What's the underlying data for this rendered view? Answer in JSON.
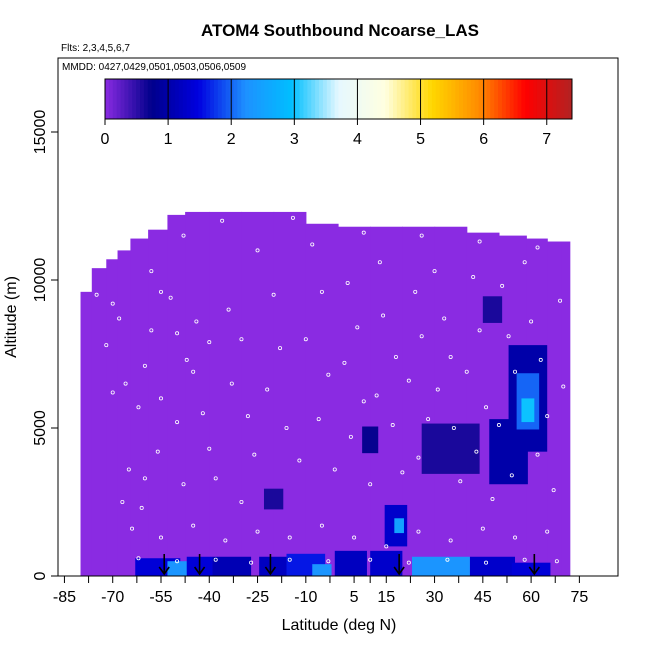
{
  "chart_data": {
    "type": "heatmap",
    "title": "ATOM4 Southbound Ncoarse_LAS",
    "subtitle_flights": "Flts: 2,3,4,5,6,7",
    "subtitle_dates": "MMDD: 0427,0429,0501,0503,0506,0509",
    "xlabel": "Latitude (deg N)",
    "ylabel": "Altitude (m)",
    "xlim": [
      -87,
      87
    ],
    "ylim": [
      0,
      17500
    ],
    "x_ticks": [
      -85,
      -70,
      -55,
      -40,
      -25,
      -10,
      5,
      15,
      30,
      45,
      60,
      75
    ],
    "x_tick_labels": [
      "-85",
      "-70",
      "-55",
      "-40",
      "-25",
      "-10",
      "5",
      "15",
      "30",
      "45",
      "60",
      "75"
    ],
    "y_ticks": [
      0,
      5000,
      10000,
      15000
    ],
    "y_tick_labels": [
      "0",
      "5000",
      "10000",
      "15000"
    ],
    "colorbar": {
      "min": 0,
      "max": 7.4,
      "ticks": [
        0,
        1,
        2,
        3,
        4,
        5,
        6,
        7
      ],
      "tick_labels": [
        "0",
        "1",
        "2",
        "3",
        "4",
        "5",
        "6",
        "7"
      ],
      "colors": [
        "#8a2be2",
        "#00008b",
        "#0000e0",
        "#1e90ff",
        "#00bfff",
        "#e6f8ff",
        "#ffffe0",
        "#ffd700",
        "#ff8c00",
        "#ff0000",
        "#b22222"
      ]
    },
    "background_value": 0,
    "ceiling": [
      {
        "x": -79,
        "alt": 9600
      },
      {
        "x": -74,
        "alt": 10400
      },
      {
        "x": -70,
        "alt": 10700
      },
      {
        "x": -67,
        "alt": 11000
      },
      {
        "x": -62,
        "alt": 11400
      },
      {
        "x": -56,
        "alt": 11700
      },
      {
        "x": -50,
        "alt": 12200
      },
      {
        "x": -45,
        "alt": 12300
      },
      {
        "x": -35,
        "alt": 12300
      },
      {
        "x": -25,
        "alt": 12300
      },
      {
        "x": -15,
        "alt": 12300
      },
      {
        "x": -5,
        "alt": 11900
      },
      {
        "x": 5,
        "alt": 11800
      },
      {
        "x": 15,
        "alt": 11800
      },
      {
        "x": 25,
        "alt": 11800
      },
      {
        "x": 35,
        "alt": 11800
      },
      {
        "x": 45,
        "alt": 11600
      },
      {
        "x": 55,
        "alt": 11500
      },
      {
        "x": 62,
        "alt": 11400
      },
      {
        "x": 68,
        "alt": 11300
      },
      {
        "x": 71,
        "alt": 11300
      }
    ],
    "enhancements": [
      {
        "x": -56,
        "alt": 250,
        "w": 14,
        "h": 700,
        "value": 1.4
      },
      {
        "x": -49,
        "alt": 250,
        "w": 8,
        "h": 500,
        "value": 2.3
      },
      {
        "x": -43,
        "alt": 300,
        "w": 8,
        "h": 700,
        "value": 1.4
      },
      {
        "x": -33,
        "alt": 300,
        "w": 12,
        "h": 700,
        "value": 1.1
      },
      {
        "x": -20,
        "alt": 300,
        "w": 9,
        "h": 700,
        "value": 1.2
      },
      {
        "x": -10,
        "alt": 350,
        "w": 12,
        "h": 800,
        "value": 1.6
      },
      {
        "x": -5,
        "alt": 200,
        "w": 6,
        "h": 400,
        "value": 2.3
      },
      {
        "x": 4,
        "alt": 400,
        "w": 10,
        "h": 900,
        "value": 1.2
      },
      {
        "x": 18,
        "alt": 1700,
        "w": 7,
        "h": 1400,
        "value": 1.3
      },
      {
        "x": 19,
        "alt": 1700,
        "w": 3,
        "h": 500,
        "value": 2.5
      },
      {
        "x": 15,
        "alt": 400,
        "w": 10,
        "h": 900,
        "value": 1.3
      },
      {
        "x": 32,
        "alt": 300,
        "w": 18,
        "h": 700,
        "value": 2.3
      },
      {
        "x": 48,
        "alt": 300,
        "w": 14,
        "h": 700,
        "value": 1.3
      },
      {
        "x": 60,
        "alt": 200,
        "w": 12,
        "h": 500,
        "value": 1.4
      },
      {
        "x": 35,
        "alt": 4300,
        "w": 18,
        "h": 1700,
        "value": 0.6
      },
      {
        "x": 53,
        "alt": 4200,
        "w": 12,
        "h": 2200,
        "value": 1.0
      },
      {
        "x": 59,
        "alt": 6000,
        "w": 12,
        "h": 3600,
        "value": 1.0
      },
      {
        "x": 59,
        "alt": 5900,
        "w": 7,
        "h": 1900,
        "value": 2.0
      },
      {
        "x": 59,
        "alt": 5600,
        "w": 4,
        "h": 800,
        "value": 3.0
      },
      {
        "x": 10,
        "alt": 4600,
        "w": 5,
        "h": 900,
        "value": 0.7
      },
      {
        "x": 48,
        "alt": 9000,
        "w": 6,
        "h": 900,
        "value": 0.6
      },
      {
        "x": -20,
        "alt": 2600,
        "w": 6,
        "h": 700,
        "value": 0.6
      }
    ],
    "sample_points": [
      [
        -75,
        9500
      ],
      [
        -70,
        9200
      ],
      [
        -68,
        8700
      ],
      [
        -72,
        7800
      ],
      [
        -66,
        6500
      ],
      [
        -70,
        6200
      ],
      [
        -62,
        5700
      ],
      [
        -58,
        8300
      ],
      [
        -60,
        7100
      ],
      [
        -65,
        3600
      ],
      [
        -67,
        2500
      ],
      [
        -61,
        2300
      ],
      [
        -55,
        9600
      ],
      [
        -52,
        9400
      ],
      [
        -50,
        8200
      ],
      [
        -47,
        7300
      ],
      [
        -55,
        6000
      ],
      [
        -50,
        5200
      ],
      [
        -56,
        4200
      ],
      [
        -60,
        3300
      ],
      [
        -48,
        3100
      ],
      [
        -44,
        8600
      ],
      [
        -40,
        7900
      ],
      [
        -45,
        6900
      ],
      [
        -42,
        5500
      ],
      [
        -40,
        4300
      ],
      [
        -38,
        3300
      ],
      [
        -34,
        9000
      ],
      [
        -30,
        8000
      ],
      [
        -33,
        6500
      ],
      [
        -28,
        5400
      ],
      [
        -26,
        4100
      ],
      [
        -30,
        2500
      ],
      [
        -25,
        11000
      ],
      [
        -20,
        9500
      ],
      [
        -18,
        7700
      ],
      [
        -22,
        6300
      ],
      [
        -16,
        5000
      ],
      [
        -12,
        3900
      ],
      [
        -8,
        11200
      ],
      [
        -5,
        9600
      ],
      [
        -10,
        8000
      ],
      [
        -3,
        6800
      ],
      [
        -6,
        5300
      ],
      [
        -1,
        3600
      ],
      [
        3,
        9900
      ],
      [
        6,
        8400
      ],
      [
        2,
        7200
      ],
      [
        8,
        5900
      ],
      [
        4,
        4700
      ],
      [
        10,
        3100
      ],
      [
        13,
        10600
      ],
      [
        14,
        8800
      ],
      [
        18,
        7400
      ],
      [
        12,
        6100
      ],
      [
        17,
        5100
      ],
      [
        20,
        3500
      ],
      [
        24,
        9600
      ],
      [
        26,
        8100
      ],
      [
        22,
        6600
      ],
      [
        28,
        5300
      ],
      [
        25,
        4000
      ],
      [
        30,
        10300
      ],
      [
        33,
        8700
      ],
      [
        35,
        7400
      ],
      [
        31,
        6300
      ],
      [
        36,
        5000
      ],
      [
        38,
        3200
      ],
      [
        42,
        10100
      ],
      [
        44,
        8300
      ],
      [
        40,
        6900
      ],
      [
        46,
        5700
      ],
      [
        43,
        4200
      ],
      [
        48,
        2600
      ],
      [
        51,
        9800
      ],
      [
        53,
        8100
      ],
      [
        55,
        6900
      ],
      [
        50,
        5100
      ],
      [
        54,
        3400
      ],
      [
        58,
        10600
      ],
      [
        60,
        8600
      ],
      [
        63,
        7300
      ],
      [
        65,
        5400
      ],
      [
        62,
        4100
      ],
      [
        67,
        2900
      ],
      [
        69,
        9300
      ],
      [
        70,
        6400
      ],
      [
        -64,
        1600
      ],
      [
        -55,
        1300
      ],
      [
        -45,
        1700
      ],
      [
        -35,
        1200
      ],
      [
        -25,
        1500
      ],
      [
        -15,
        1300
      ],
      [
        -5,
        1700
      ],
      [
        5,
        1300
      ],
      [
        15,
        1000
      ],
      [
        25,
        1500
      ],
      [
        35,
        1200
      ],
      [
        45,
        1600
      ],
      [
        55,
        1300
      ],
      [
        65,
        1500
      ],
      [
        -62,
        600
      ],
      [
        -50,
        500
      ],
      [
        -38,
        550
      ],
      [
        -27,
        450
      ],
      [
        -15,
        550
      ],
      [
        -3,
        500
      ],
      [
        10,
        550
      ],
      [
        22,
        450
      ],
      [
        34,
        550
      ],
      [
        46,
        450
      ],
      [
        58,
        550
      ],
      [
        68,
        500
      ],
      [
        -58,
        10300
      ],
      [
        -48,
        11500
      ],
      [
        -36,
        12000
      ],
      [
        -14,
        12100
      ],
      [
        8,
        11600
      ],
      [
        26,
        11500
      ],
      [
        44,
        11300
      ],
      [
        62,
        11100
      ]
    ],
    "arrows": [
      -54,
      -43,
      -21,
      19,
      61
    ]
  }
}
